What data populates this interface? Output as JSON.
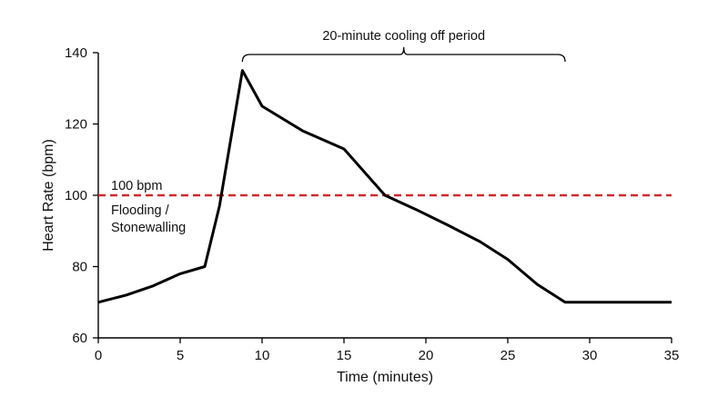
{
  "chart_data": {
    "type": "line",
    "xlabel": "Time (minutes)",
    "ylabel": "Heart Rate (bpm)",
    "xlim": [
      0,
      35
    ],
    "ylim": [
      60,
      140
    ],
    "xticks": [
      0,
      5,
      10,
      15,
      20,
      25,
      30,
      35
    ],
    "yticks": [
      60,
      80,
      100,
      120,
      140
    ],
    "grid": false,
    "series": [
      {
        "color": "#000000",
        "x": [
          0,
          1.7,
          3.3,
          5,
          6.5,
          7.4,
          8.8,
          10,
          12.5,
          15,
          17.5,
          19.4,
          21.4,
          23.3,
          25,
          26.8,
          28.5,
          30,
          35
        ],
        "y": [
          70,
          72,
          74.5,
          78,
          80,
          97,
          135,
          125,
          118,
          113,
          100,
          96,
          91.5,
          87,
          82,
          75,
          70,
          70,
          70
        ]
      }
    ],
    "reference_line": {
      "y": 100,
      "color": "#d0292b",
      "style": "dashed"
    },
    "annotations": {
      "threshold_label": "100 bpm",
      "zone_label_line1": "Flooding /",
      "zone_label_line2": "Stonewalling",
      "period_label": "20-minute cooling off period",
      "period_range": [
        8.8,
        28.5
      ]
    }
  }
}
